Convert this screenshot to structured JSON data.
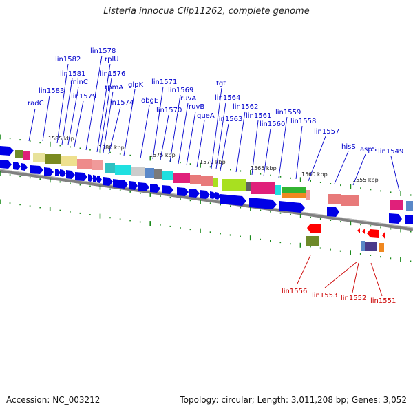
{
  "header": {
    "title": "Listeria innocua Clip11262, complete genome"
  },
  "footer": {
    "accession": "Accession: NC_003212",
    "summary": "Topology: circular; Length: 3,011,208 bp; Genes: 3,052"
  },
  "kbp_labels": [
    "1585 kbp",
    "1580 kbp",
    "1575 kbp",
    "1570 kbp",
    "1565 kbp",
    "1560 kbp",
    "1555 kbp"
  ],
  "top_labels": [
    "radC",
    "lin1583",
    "lin1582",
    "lin1581",
    "minC",
    "lin1579",
    "lin1578",
    "rplU",
    "lin1576",
    "rpmA",
    "lin1574",
    "glpK",
    "obgE",
    "lin1571",
    "lin1570",
    "lin1569",
    "ruvA",
    "ruvB",
    "queA",
    "tgt",
    "lin1564",
    "lin1563",
    "lin1562",
    "lin1561",
    "lin1560",
    "lin1559",
    "lin1558",
    "lin1557",
    "hisS",
    "aspS",
    "lin1549"
  ],
  "bottom_labels": [
    "lin1556",
    "lin1553",
    "lin1552",
    "lin1551"
  ],
  "colors": {
    "forward_gene": "#0000e6",
    "reverse_gene": "#ff0000",
    "top_label": "#0000cc",
    "bottom_label": "#cc0000",
    "backbone": "#707070",
    "tick": "#1a8a1a"
  }
}
